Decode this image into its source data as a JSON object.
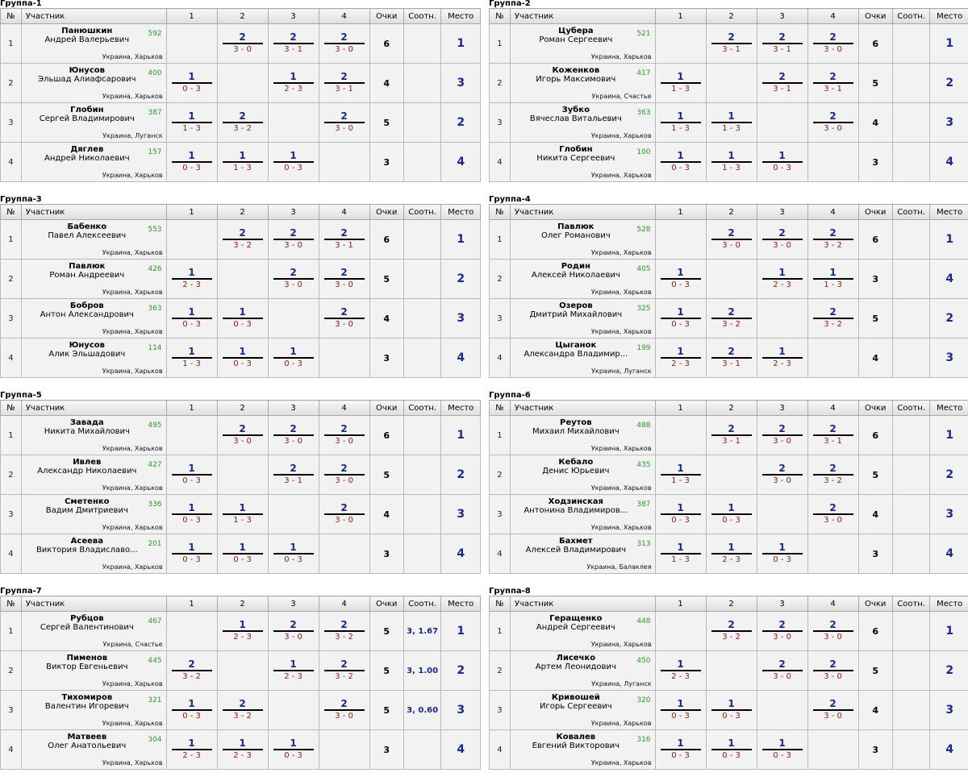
{
  "headers": {
    "no": "№",
    "participant": "Участник",
    "cols": [
      "1",
      "2",
      "3",
      "4"
    ],
    "points": "Очки",
    "ratio": "Соотн.",
    "place": "Место"
  },
  "groups": [
    {
      "title": "Группа-1",
      "rows": [
        {
          "num": "1",
          "surname": "Панюшкин",
          "fullname": "Андрей Валерьевич",
          "rating": "592",
          "location": "Украина, Харьков",
          "matches": [
            null,
            {
              "w": "2",
              "s": "3 - 0"
            },
            {
              "w": "2",
              "s": "3 - 1"
            },
            {
              "w": "2",
              "s": "3 - 0"
            }
          ],
          "points": "6",
          "ratio": "",
          "place": "1"
        },
        {
          "num": "2",
          "surname": "Юнусов",
          "fullname": "Эльшад Алиафсарович",
          "rating": "400",
          "location": "Украина, Харьков",
          "matches": [
            {
              "w": "1",
              "s": "0 - 3"
            },
            null,
            {
              "w": "1",
              "s": "2 - 3"
            },
            {
              "w": "2",
              "s": "3 - 1"
            }
          ],
          "points": "4",
          "ratio": "",
          "place": "3"
        },
        {
          "num": "3",
          "surname": "Глобин",
          "fullname": "Сергей Владимирович",
          "rating": "387",
          "location": "Украина, Луганск",
          "matches": [
            {
              "w": "1",
              "s": "1 - 3"
            },
            {
              "w": "2",
              "s": "3 - 2"
            },
            null,
            {
              "w": "2",
              "s": "3 - 0"
            }
          ],
          "points": "5",
          "ratio": "",
          "place": "2"
        },
        {
          "num": "4",
          "surname": "Дяглев",
          "fullname": "Андрей Николаевич",
          "rating": "157",
          "location": "Украина, Харьков",
          "matches": [
            {
              "w": "1",
              "s": "0 - 3"
            },
            {
              "w": "1",
              "s": "1 - 3"
            },
            {
              "w": "1",
              "s": "0 - 3"
            },
            null
          ],
          "points": "3",
          "ratio": "",
          "place": "4"
        }
      ]
    },
    {
      "title": "Группа-2",
      "rows": [
        {
          "num": "1",
          "surname": "Цубера",
          "fullname": "Роман Сергеевич",
          "rating": "521",
          "location": "Украина, Харьков",
          "matches": [
            null,
            {
              "w": "2",
              "s": "3 - 1"
            },
            {
              "w": "2",
              "s": "3 - 1"
            },
            {
              "w": "2",
              "s": "3 - 0"
            }
          ],
          "points": "6",
          "ratio": "",
          "place": "1"
        },
        {
          "num": "2",
          "surname": "Коженков",
          "fullname": "Игорь Максимович",
          "rating": "417",
          "location": "Украина, Счастье",
          "matches": [
            {
              "w": "1",
              "s": "1 - 3"
            },
            null,
            {
              "w": "2",
              "s": "3 - 1"
            },
            {
              "w": "2",
              "s": "3 - 1"
            }
          ],
          "points": "5",
          "ratio": "",
          "place": "2"
        },
        {
          "num": "3",
          "surname": "Зубко",
          "fullname": "Вячеслав Витальевич",
          "rating": "363",
          "location": "Украина, Харьков",
          "matches": [
            {
              "w": "1",
              "s": "1 - 3"
            },
            {
              "w": "1",
              "s": "1 - 3"
            },
            null,
            {
              "w": "2",
              "s": "3 - 0"
            }
          ],
          "points": "4",
          "ratio": "",
          "place": "3"
        },
        {
          "num": "4",
          "surname": "Глобин",
          "fullname": "Никита Сергеевич",
          "rating": "100",
          "location": "Украина, Харьков",
          "matches": [
            {
              "w": "1",
              "s": "0 - 3"
            },
            {
              "w": "1",
              "s": "1 - 3"
            },
            {
              "w": "1",
              "s": "0 - 3"
            },
            null
          ],
          "points": "3",
          "ratio": "",
          "place": "4"
        }
      ]
    },
    {
      "title": "Группа-3",
      "rows": [
        {
          "num": "1",
          "surname": "Бабенко",
          "fullname": "Павел Алексеевич",
          "rating": "553",
          "location": "Украина, Харьков",
          "matches": [
            null,
            {
              "w": "2",
              "s": "3 - 2"
            },
            {
              "w": "2",
              "s": "3 - 0"
            },
            {
              "w": "2",
              "s": "3 - 1"
            }
          ],
          "points": "6",
          "ratio": "",
          "place": "1"
        },
        {
          "num": "2",
          "surname": "Павлюк",
          "fullname": "Роман Андреевич",
          "rating": "426",
          "location": "Украина, Харьков",
          "matches": [
            {
              "w": "1",
              "s": "2 - 3"
            },
            null,
            {
              "w": "2",
              "s": "3 - 0"
            },
            {
              "w": "2",
              "s": "3 - 0"
            }
          ],
          "points": "5",
          "ratio": "",
          "place": "2"
        },
        {
          "num": "3",
          "surname": "Бобров",
          "fullname": "Антон Александрович",
          "rating": "363",
          "location": "Украина, Харьков",
          "matches": [
            {
              "w": "1",
              "s": "0 - 3"
            },
            {
              "w": "1",
              "s": "0 - 3"
            },
            null,
            {
              "w": "2",
              "s": "3 - 0"
            }
          ],
          "points": "4",
          "ratio": "",
          "place": "3"
        },
        {
          "num": "4",
          "surname": "Юнусов",
          "fullname": "Алик Эльшадович",
          "rating": "114",
          "location": "Украина, Харьков",
          "matches": [
            {
              "w": "1",
              "s": "1 - 3"
            },
            {
              "w": "1",
              "s": "0 - 3"
            },
            {
              "w": "1",
              "s": "0 - 3"
            },
            null
          ],
          "points": "3",
          "ratio": "",
          "place": "4"
        }
      ]
    },
    {
      "title": "Группа-4",
      "rows": [
        {
          "num": "1",
          "surname": "Павлюк",
          "fullname": "Олег Романович",
          "rating": "528",
          "location": "Украина, Харьков",
          "matches": [
            null,
            {
              "w": "2",
              "s": "3 - 0"
            },
            {
              "w": "2",
              "s": "3 - 0"
            },
            {
              "w": "2",
              "s": "3 - 2"
            }
          ],
          "points": "6",
          "ratio": "",
          "place": "1"
        },
        {
          "num": "2",
          "surname": "Родин",
          "fullname": "Алексей Николаевич",
          "rating": "405",
          "location": "Украина, Харьков",
          "matches": [
            {
              "w": "1",
              "s": "0 - 3"
            },
            null,
            {
              "w": "1",
              "s": "2 - 3"
            },
            {
              "w": "1",
              "s": "1 - 3"
            }
          ],
          "points": "3",
          "ratio": "",
          "place": "4"
        },
        {
          "num": "3",
          "surname": "Озеров",
          "fullname": "Дмитрий Михайлович",
          "rating": "325",
          "location": "Украина, Харьков",
          "matches": [
            {
              "w": "1",
              "s": "0 - 3"
            },
            {
              "w": "2",
              "s": "3 - 2"
            },
            null,
            {
              "w": "2",
              "s": "3 - 2"
            }
          ],
          "points": "5",
          "ratio": "",
          "place": "2"
        },
        {
          "num": "4",
          "surname": "Цыганок",
          "fullname": "Александра Владимир...",
          "rating": "199",
          "location": "Украина, Луганск",
          "matches": [
            {
              "w": "1",
              "s": "2 - 3"
            },
            {
              "w": "2",
              "s": "3 - 1"
            },
            {
              "w": "1",
              "s": "2 - 3"
            },
            null
          ],
          "points": "4",
          "ratio": "",
          "place": "3"
        }
      ]
    },
    {
      "title": "Группа-5",
      "rows": [
        {
          "num": "1",
          "surname": "Завада",
          "fullname": "Никита Михайлович",
          "rating": "495",
          "location": "Украина, Харьков",
          "matches": [
            null,
            {
              "w": "2",
              "s": "3 - 0"
            },
            {
              "w": "2",
              "s": "3 - 0"
            },
            {
              "w": "2",
              "s": "3 - 0"
            }
          ],
          "points": "6",
          "ratio": "",
          "place": "1"
        },
        {
          "num": "2",
          "surname": "Ивлев",
          "fullname": "Александр Николаевич",
          "rating": "427",
          "location": "Украина, Харьков",
          "matches": [
            {
              "w": "1",
              "s": "0 - 3"
            },
            null,
            {
              "w": "2",
              "s": "3 - 1"
            },
            {
              "w": "2",
              "s": "3 - 0"
            }
          ],
          "points": "5",
          "ratio": "",
          "place": "2"
        },
        {
          "num": "3",
          "surname": "Сметенко",
          "fullname": "Вадим Дмитриевич",
          "rating": "336",
          "location": "Украина, Харьков",
          "matches": [
            {
              "w": "1",
              "s": "0 - 3"
            },
            {
              "w": "1",
              "s": "1 - 3"
            },
            null,
            {
              "w": "2",
              "s": "3 - 0"
            }
          ],
          "points": "4",
          "ratio": "",
          "place": "3"
        },
        {
          "num": "4",
          "surname": "Асеева",
          "fullname": "Виктория Владиславо...",
          "rating": "201",
          "location": "Украина, Харьков",
          "matches": [
            {
              "w": "1",
              "s": "0 - 3"
            },
            {
              "w": "1",
              "s": "0 - 3"
            },
            {
              "w": "1",
              "s": "0 - 3"
            },
            null
          ],
          "points": "3",
          "ratio": "",
          "place": "4"
        }
      ]
    },
    {
      "title": "Группа-6",
      "rows": [
        {
          "num": "1",
          "surname": "Реутов",
          "fullname": "Михаил Михайлович",
          "rating": "488",
          "location": "Украина, Харьков",
          "matches": [
            null,
            {
              "w": "2",
              "s": "3 - 1"
            },
            {
              "w": "2",
              "s": "3 - 0"
            },
            {
              "w": "2",
              "s": "3 - 1"
            }
          ],
          "points": "6",
          "ratio": "",
          "place": "1"
        },
        {
          "num": "2",
          "surname": "Кебало",
          "fullname": "Денис Юрьевич",
          "rating": "435",
          "location": "Украина, Харьков",
          "matches": [
            {
              "w": "1",
              "s": "1 - 3"
            },
            null,
            {
              "w": "2",
              "s": "3 - 0"
            },
            {
              "w": "2",
              "s": "3 - 2"
            }
          ],
          "points": "5",
          "ratio": "",
          "place": "2"
        },
        {
          "num": "3",
          "surname": "Ходзинская",
          "fullname": "Антонина Владимиров...",
          "rating": "387",
          "location": "Украина, Харьков",
          "matches": [
            {
              "w": "1",
              "s": "0 - 3"
            },
            {
              "w": "1",
              "s": "0 - 3"
            },
            null,
            {
              "w": "2",
              "s": "3 - 0"
            }
          ],
          "points": "4",
          "ratio": "",
          "place": "3"
        },
        {
          "num": "4",
          "surname": "Бахмет",
          "fullname": "Алексей Владимирович",
          "rating": "313",
          "location": "Украина, Балаклея",
          "matches": [
            {
              "w": "1",
              "s": "1 - 3"
            },
            {
              "w": "1",
              "s": "2 - 3"
            },
            {
              "w": "1",
              "s": "0 - 3"
            },
            null
          ],
          "points": "3",
          "ratio": "",
          "place": "4"
        }
      ]
    },
    {
      "title": "Группа-7",
      "rows": [
        {
          "num": "1",
          "surname": "Рубцов",
          "fullname": "Сергей Валентинович",
          "rating": "467",
          "location": "Украина, Счастье",
          "matches": [
            null,
            {
              "w": "1",
              "s": "2 - 3"
            },
            {
              "w": "2",
              "s": "3 - 0"
            },
            {
              "w": "2",
              "s": "3 - 2"
            }
          ],
          "points": "5",
          "ratio": "3, 1.67",
          "place": "1"
        },
        {
          "num": "2",
          "surname": "Пименов",
          "fullname": "Виктор Евгеньевич",
          "rating": "445",
          "location": "Украина, Харьков",
          "matches": [
            {
              "w": "2",
              "s": "3 - 2"
            },
            null,
            {
              "w": "1",
              "s": "2 - 3"
            },
            {
              "w": "2",
              "s": "3 - 2"
            }
          ],
          "points": "5",
          "ratio": "3, 1.00",
          "place": "2"
        },
        {
          "num": "3",
          "surname": "Тихомиров",
          "fullname": "Валентин Игоревич",
          "rating": "321",
          "location": "Украина, Харьков",
          "matches": [
            {
              "w": "1",
              "s": "0 - 3"
            },
            {
              "w": "2",
              "s": "3 - 2"
            },
            null,
            {
              "w": "2",
              "s": "3 - 0"
            }
          ],
          "points": "5",
          "ratio": "3, 0.60",
          "place": "3"
        },
        {
          "num": "4",
          "surname": "Матвеев",
          "fullname": "Олег Анатольевич",
          "rating": "304",
          "location": "Украина, Харьков",
          "matches": [
            {
              "w": "1",
              "s": "2 - 3"
            },
            {
              "w": "1",
              "s": "2 - 3"
            },
            {
              "w": "1",
              "s": "0 - 3"
            },
            null
          ],
          "points": "3",
          "ratio": "",
          "place": "4"
        }
      ]
    },
    {
      "title": "Группа-8",
      "rows": [
        {
          "num": "1",
          "surname": "Геращенко",
          "fullname": "Андрей Сергеевич",
          "rating": "448",
          "location": "Украина, Харьков",
          "matches": [
            null,
            {
              "w": "2",
              "s": "3 - 2"
            },
            {
              "w": "2",
              "s": "3 - 0"
            },
            {
              "w": "2",
              "s": "3 - 0"
            }
          ],
          "points": "6",
          "ratio": "",
          "place": "1"
        },
        {
          "num": "2",
          "surname": "Лисечко",
          "fullname": "Артем Леонидович",
          "rating": "450",
          "location": "Украина, Луганск",
          "matches": [
            {
              "w": "1",
              "s": "2 - 3"
            },
            null,
            {
              "w": "2",
              "s": "3 - 0"
            },
            {
              "w": "2",
              "s": "3 - 0"
            }
          ],
          "points": "5",
          "ratio": "",
          "place": "2"
        },
        {
          "num": "3",
          "surname": "Кривошей",
          "fullname": "Игорь Сергеевич",
          "rating": "320",
          "location": "Украина, Харьков",
          "matches": [
            {
              "w": "1",
              "s": "0 - 3"
            },
            {
              "w": "1",
              "s": "0 - 3"
            },
            null,
            {
              "w": "2",
              "s": "3 - 0"
            }
          ],
          "points": "4",
          "ratio": "",
          "place": "3"
        },
        {
          "num": "4",
          "surname": "Ковалев",
          "fullname": "Евгений Викторович",
          "rating": "316",
          "location": "Украина, Харьков",
          "matches": [
            {
              "w": "1",
              "s": "0 - 3"
            },
            {
              "w": "1",
              "s": "0 - 3"
            },
            {
              "w": "1",
              "s": "0 - 3"
            },
            null
          ],
          "points": "3",
          "ratio": "",
          "place": "4"
        }
      ]
    }
  ]
}
